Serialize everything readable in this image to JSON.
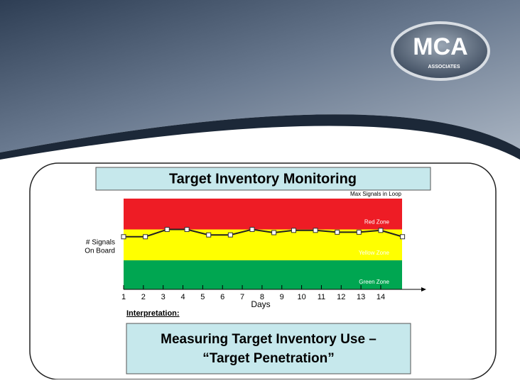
{
  "logo": {
    "name": "MCA",
    "tagline": "ASSOCIATES"
  },
  "chart_data": {
    "type": "line",
    "title": "Target Inventory Monitoring",
    "annotation": "Max Signals in Loop",
    "y_label": [
      "# Signals",
      "On Board"
    ],
    "x_label": "Days",
    "zones": [
      {
        "name": "Red Zone",
        "from": 6.6,
        "to": 10,
        "color": "#ee1c25"
      },
      {
        "name": "Yellow Zone",
        "from": 3.2,
        "to": 6.6,
        "color": "#ffff00"
      },
      {
        "name": "Green Zone",
        "from": 0,
        "to": 3.2,
        "color": "#00a651"
      }
    ],
    "x": [
      1,
      2.1,
      3.2,
      4.2,
      5.3,
      6.4,
      7.5,
      8.6,
      9.6,
      10.7,
      11.8,
      12.9,
      14,
      15.1
    ],
    "series": [
      {
        "name": "Signals",
        "color": "#222222",
        "values": [
          5.8,
          5.8,
          6.6,
          6.6,
          6.0,
          6.0,
          6.6,
          6.25,
          6.5,
          6.5,
          6.3,
          6.3,
          6.5,
          5.8
        ]
      }
    ],
    "xlim": [
      1,
      16.3
    ],
    "xticks": [
      1,
      2,
      3,
      4,
      5,
      6,
      7,
      8,
      9,
      10,
      11,
      12,
      13,
      14
    ],
    "ylim": [
      0,
      10
    ]
  },
  "interpretation": "Interpretation:",
  "conclusion": [
    "Measuring Target Inventory Use –",
    "“Target Penetration”"
  ]
}
